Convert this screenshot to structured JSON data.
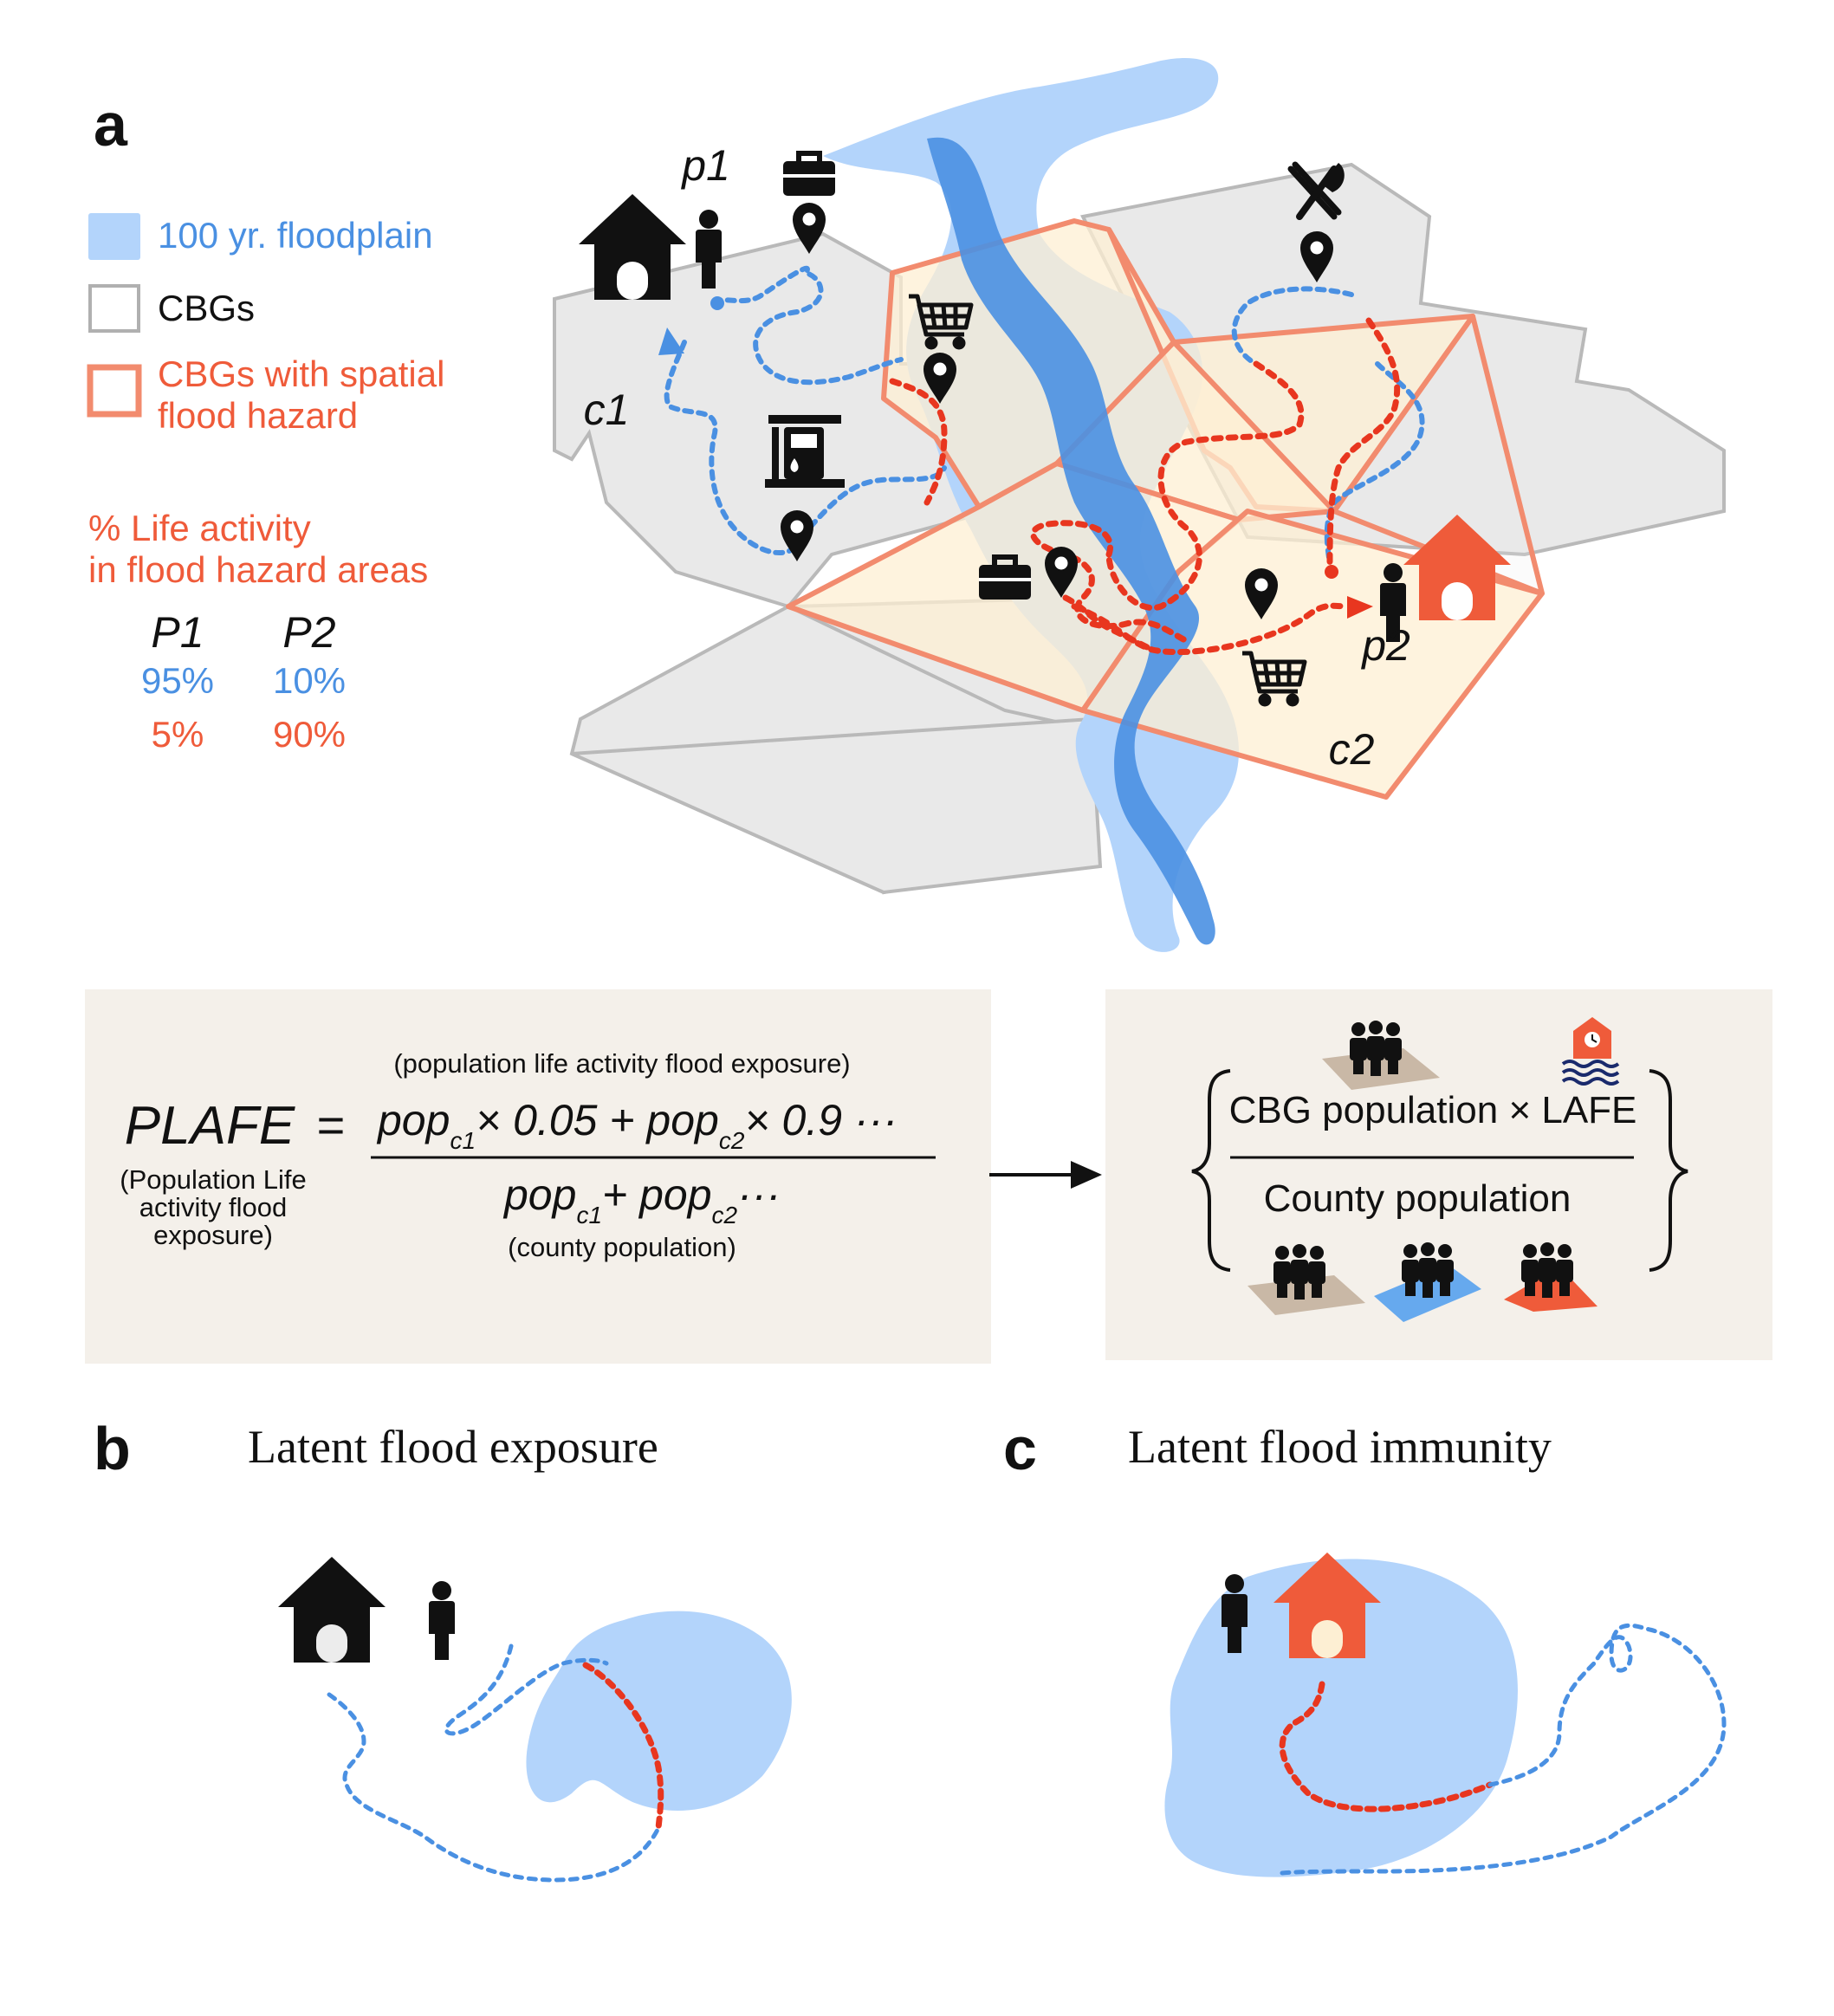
{
  "panels": {
    "a": "a",
    "b": "b",
    "c": "c"
  },
  "legend": {
    "floodplain": "100 yr. floodplain",
    "cbgs": "CBGs",
    "hazard_line1": "CBGs with spatial",
    "hazard_line2": "flood hazard",
    "activity_line1": "% Life activity",
    "activity_line2": "in flood hazard areas",
    "col_p1": "P1",
    "col_p2": "P2",
    "p1_blue": "95%",
    "p2_blue": "10%",
    "p1_red": "5%",
    "p2_red": "90%"
  },
  "map_labels": {
    "p1": "p1",
    "p2": "p2",
    "c1": "c1",
    "c2": "c2"
  },
  "formula": {
    "lhs": "PLAFE",
    "equals": "=",
    "lhs_sub1": "(Population Life",
    "lhs_sub2": "activity flood",
    "lhs_sub3": "exposure)",
    "num_caption": "(population life activity flood exposure)",
    "num_pop": "pop",
    "num_c1": "c1",
    "num_mid": "× 0.05 + pop",
    "num_c2": "c2",
    "num_end": "× 0.9 ···",
    "den_pop": "pop",
    "den_c1": "c1",
    "den_mid": "+ pop",
    "den_c2": "c2",
    "den_end": "···",
    "den_caption": "(county population)"
  },
  "formula2": {
    "numerator": "CBG population × LAFE",
    "denominator": "County population"
  },
  "titles": {
    "b": "Latent flood exposure",
    "c": "Latent flood immunity"
  },
  "colors": {
    "floodplain": "#b3d4fb",
    "river": "#4a90e2",
    "hazard_outline": "#f28b6e",
    "hazard_fill": "#fdefd3",
    "cbg_fill": "#e9e9e9",
    "cbg_outline": "#b9b9b9",
    "blue_text": "#4a90e2",
    "red_text": "#ef5b3a",
    "formula_bg": "#f4f0ea",
    "house_red": "#ef5b3a",
    "pad_brown": "#c9b8a6",
    "pad_blue": "#66a9ee",
    "pad_red": "#ef5b3a"
  }
}
